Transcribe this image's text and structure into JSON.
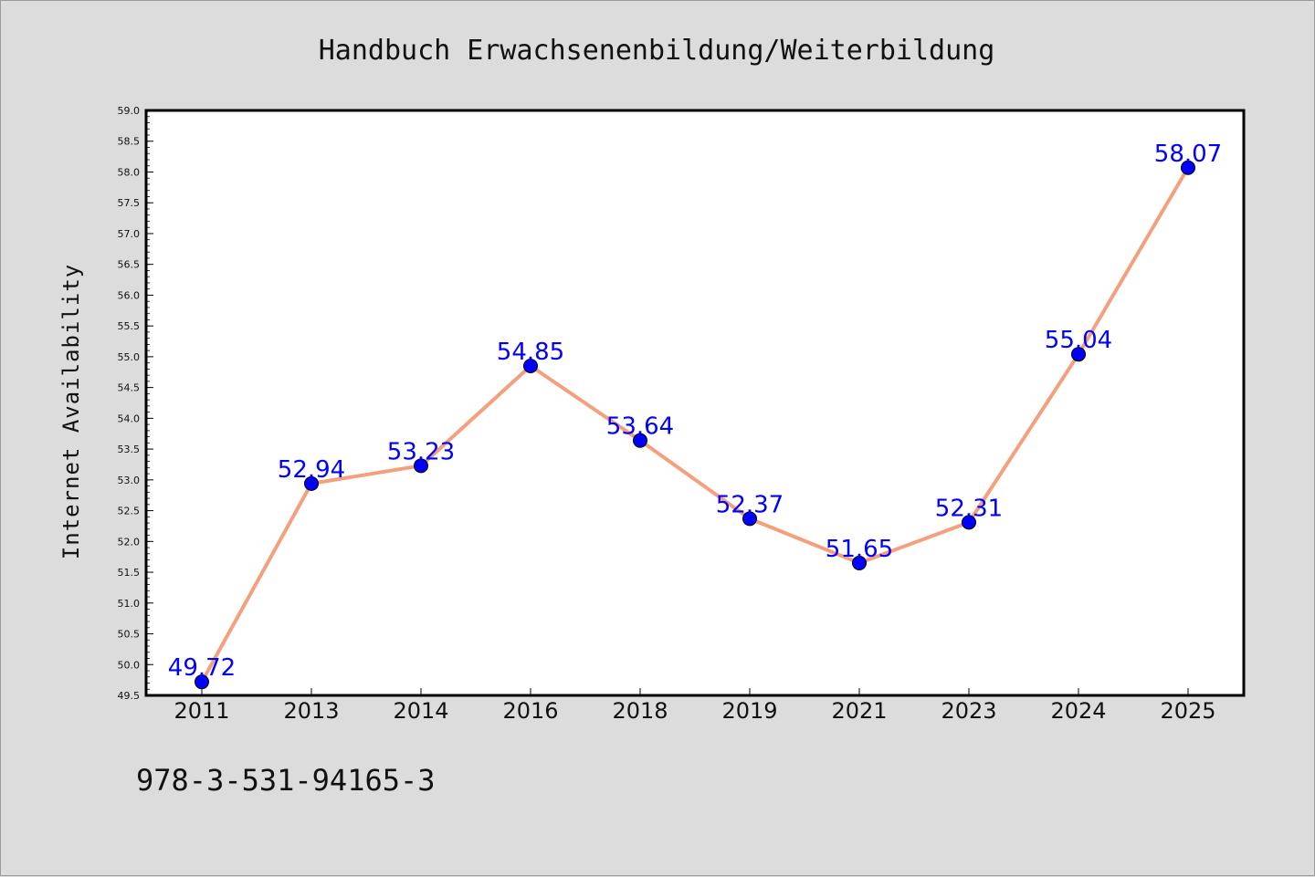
{
  "chart_data": {
    "type": "line",
    "title": "Handbuch Erwachsenenbildung/Weiterbildung",
    "xlabel": "",
    "ylabel": "Internet Availability",
    "categories": [
      "2011",
      "2013",
      "2014",
      "2016",
      "2018",
      "2019",
      "2021",
      "2023",
      "2024",
      "2025"
    ],
    "series": [
      {
        "values": [
          49.72,
          52.94,
          53.23,
          54.85,
          53.64,
          52.37,
          51.65,
          52.31,
          55.04,
          58.07
        ],
        "data_labels": [
          "49.72",
          "52.94",
          "53.23",
          "54.85",
          "53.64",
          "52.37",
          "51.65",
          "52.31",
          "55.04",
          "58.07"
        ],
        "line_color": "#f4a07e",
        "marker_color": "#0000ff"
      }
    ],
    "ylim": [
      49.5,
      59.0
    ],
    "yticks": [
      "49.5",
      "50.0",
      "50.5",
      "51.0",
      "51.5",
      "52.0",
      "52.5",
      "53.0",
      "53.5",
      "54.0",
      "54.5",
      "55.0",
      "55.5",
      "56.0",
      "56.5",
      "57.0",
      "57.5",
      "58.0",
      "58.5",
      "59.0"
    ],
    "grid": false,
    "legend": "none",
    "label_color": "#0000ff",
    "background_color": "#dcdcdc",
    "plot_background": "#ffffff"
  },
  "footer": {
    "text": "978-3-531-94165-3"
  }
}
